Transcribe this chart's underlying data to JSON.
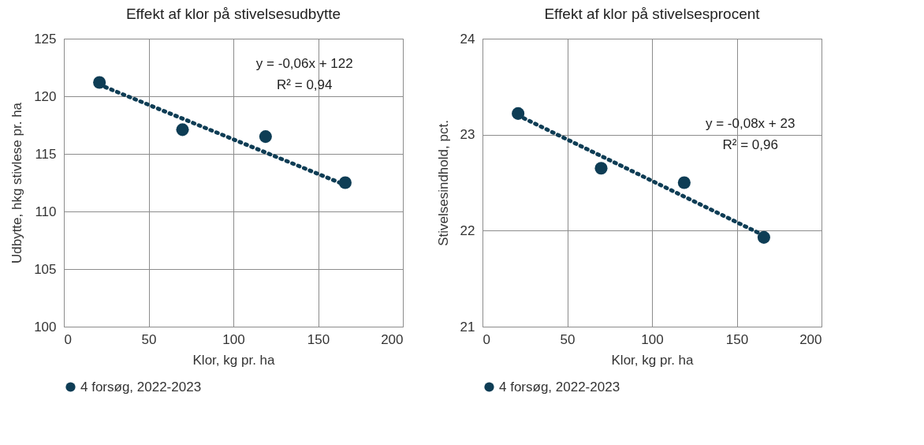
{
  "chart_data": [
    {
      "type": "scatter",
      "title": "Effekt af klor på stivelsesudbytte",
      "xlabel": "Klor, kg pr. ha",
      "ylabel": "Udbytte, hkg stivlese pr. ha",
      "xlim": [
        0,
        200
      ],
      "xticks": [
        0,
        50,
        100,
        150,
        200
      ],
      "ylim": [
        100,
        125
      ],
      "yticks": [
        100,
        105,
        110,
        115,
        120,
        125
      ],
      "grid": true,
      "legend": "bottom",
      "series": [
        {
          "type": "scatter",
          "name": "4 forsøg, 2022-2023",
          "color": "#0e3d55",
          "marker": "circle",
          "x": [
            21,
            70,
            119,
            166
          ],
          "values": [
            121.2,
            117.1,
            116.5,
            112.5
          ]
        },
        {
          "type": "line",
          "color": "#0e3d55",
          "line_style": "dotted",
          "x": [
            21,
            166
          ],
          "values": [
            121.0,
            112.3
          ]
        }
      ],
      "annotations": [
        "y = -0,06x + 122",
        "R² = 0,94"
      ]
    },
    {
      "type": "scatter",
      "title": "Effekt af klor på stivelsesprocent",
      "xlabel": "Klor, kg pr. ha",
      "ylabel": "Stivelsesindhold, pct.",
      "xlim": [
        0,
        200
      ],
      "xticks": [
        0,
        50,
        100,
        150,
        200
      ],
      "ylim": [
        21,
        24
      ],
      "yticks": [
        21,
        22,
        23,
        24
      ],
      "grid": true,
      "legend": "bottom",
      "series": [
        {
          "type": "scatter",
          "name": "4 forsøg, 2022-2023",
          "color": "#0e3d55",
          "marker": "circle",
          "x": [
            21,
            70,
            119,
            166
          ],
          "values": [
            23.22,
            22.65,
            22.5,
            21.93
          ]
        },
        {
          "type": "line",
          "color": "#0e3d55",
          "line_style": "dotted",
          "x": [
            21,
            166
          ],
          "values": [
            23.2,
            21.95
          ]
        }
      ],
      "annotations": [
        "y = -0,08x + 23",
        "R² = 0,96"
      ]
    }
  ]
}
